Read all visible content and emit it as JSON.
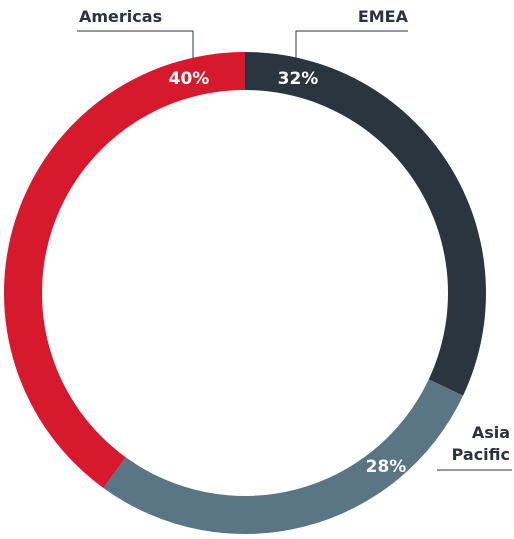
{
  "chart_data": {
    "type": "pie",
    "categories": [
      "EMEA",
      "Asia Pacific",
      "Americas"
    ],
    "values": [
      32,
      28,
      40
    ],
    "value_labels": [
      "32%",
      "28%",
      "40%"
    ],
    "category_labels": [
      [
        "EMEA"
      ],
      [
        "Asia",
        "Pacific"
      ],
      [
        "Americas"
      ]
    ],
    "colors": [
      "#2a3540",
      "#5a7584",
      "#d7192e"
    ]
  }
}
